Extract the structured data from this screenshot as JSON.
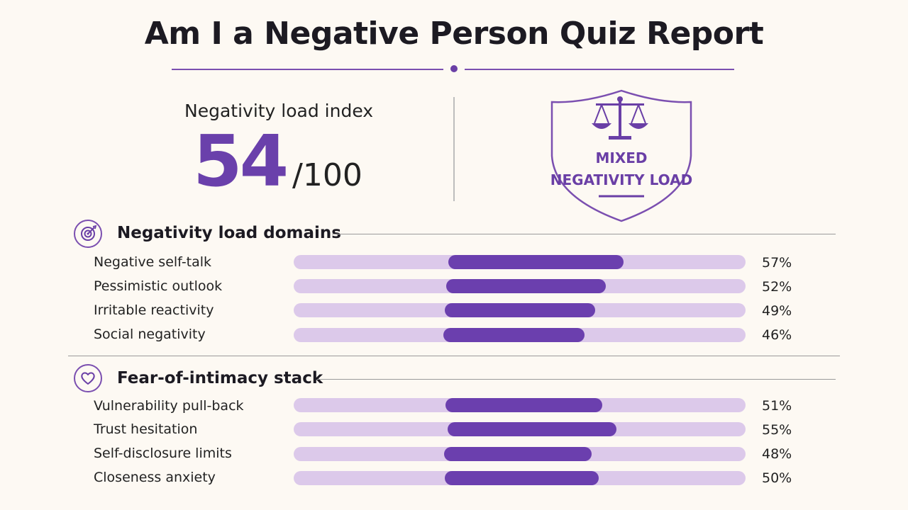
{
  "header": {
    "title": "Am I a Negative Person Quiz Report"
  },
  "index": {
    "label": "Negativity load index",
    "score": "54",
    "max": "/100",
    "score_value": 54
  },
  "badge": {
    "text": "MIXED NEGATIVITY LOAD",
    "icon": "scales-icon"
  },
  "sections": [
    {
      "title": "Negativity load domains",
      "icon": "target-icon",
      "rows": [
        {
          "label": "Negative self-talk",
          "pct": "57%",
          "value": 57
        },
        {
          "label": "Pessimistic outlook",
          "pct": "52%",
          "value": 52
        },
        {
          "label": "Irritable reactivity",
          "pct": "49%",
          "value": 49
        },
        {
          "label": "Social negativity",
          "pct": "46%",
          "value": 46
        }
      ]
    },
    {
      "title": "Fear-of-intimacy stack",
      "icon": "heart-icon",
      "rows": [
        {
          "label": "Vulnerability pull-back",
          "pct": "51%",
          "value": 51
        },
        {
          "label": "Trust hesitation",
          "pct": "55%",
          "value": 55
        },
        {
          "label": "Self-disclosure limits",
          "pct": "48%",
          "value": 48
        },
        {
          "label": "Closeness anxiety",
          "pct": "50%",
          "value": 50
        }
      ]
    }
  ],
  "colors": {
    "accent": "#6b3fae",
    "track": "#dcc9ea",
    "background": "#fdf9f3"
  }
}
